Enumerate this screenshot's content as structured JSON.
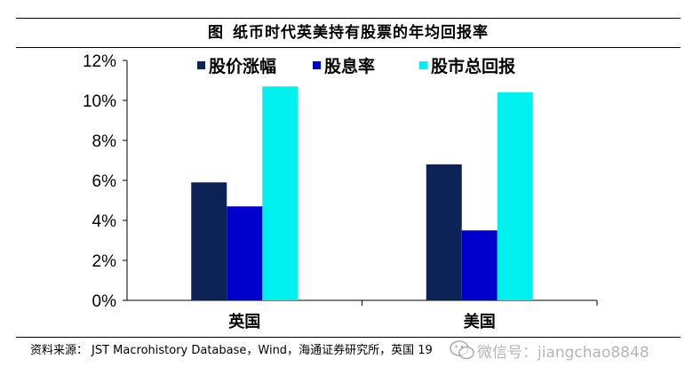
{
  "figure": {
    "label": "图",
    "title": "纸币时代英美持有股票的年均回报率"
  },
  "chart_data": {
    "type": "bar",
    "categories": [
      "英国",
      "美国"
    ],
    "series": [
      {
        "name": "股价涨幅",
        "values": [
          5.9,
          6.8
        ],
        "color": "#0d2358"
      },
      {
        "name": "股息率",
        "values": [
          4.7,
          3.5
        ],
        "color": "#0000cc"
      },
      {
        "name": "股市总回报",
        "values": [
          10.7,
          10.4
        ],
        "color": "#00f0f0"
      }
    ],
    "ylim": [
      0,
      12
    ],
    "yticks": [
      "0%",
      "2%",
      "4%",
      "6%",
      "8%",
      "10%",
      "12%"
    ],
    "ytick_values": [
      0,
      2,
      4,
      6,
      8,
      10,
      12
    ],
    "grid": false,
    "legend_position": "top"
  },
  "source": {
    "label": "资料来源：",
    "text": "JST Macrohistory Database，Wind，海通证券研究所，英国 19"
  },
  "watermark": {
    "text": "微信号：jiangchao8848",
    "icon": "wechat-icon"
  }
}
